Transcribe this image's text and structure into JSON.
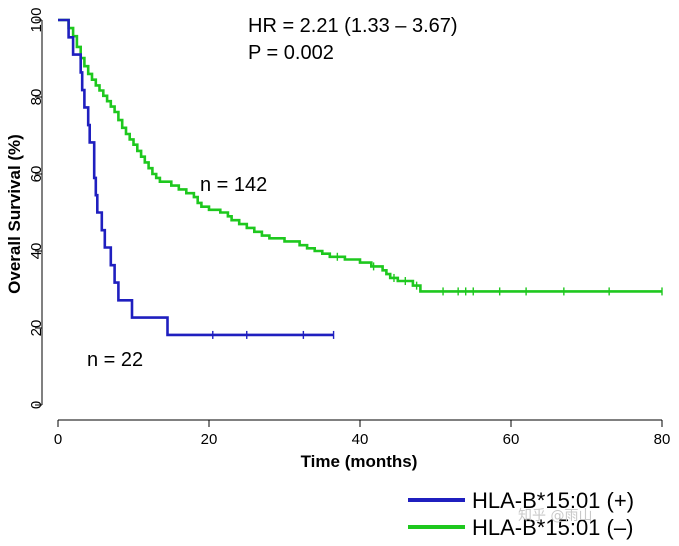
{
  "chart_data": {
    "type": "line",
    "subtype": "kaplan-meier",
    "xlabel": "Time (months)",
    "ylabel": "Overall Survival (%)",
    "xlim": [
      0,
      80
    ],
    "ylim": [
      0,
      100
    ],
    "xticks": [
      0,
      20,
      40,
      60,
      80
    ],
    "yticks": [
      0,
      20,
      40,
      60,
      80,
      100
    ],
    "annotations": {
      "hr": "HR = 2.21 (1.33 – 3.67)",
      "p": "P = 0.002",
      "n_minus": "n = 142",
      "n_plus": "n = 22"
    },
    "series": [
      {
        "name": "HLA-B*15:01 (+)",
        "color": "#1f1fbf",
        "steps": [
          [
            0,
            100
          ],
          [
            1.4,
            100
          ],
          [
            1.4,
            95.5
          ],
          [
            2,
            95.5
          ],
          [
            2,
            91
          ],
          [
            3,
            91
          ],
          [
            3,
            86.4
          ],
          [
            3.2,
            86.4
          ],
          [
            3.2,
            81.8
          ],
          [
            3.5,
            81.8
          ],
          [
            3.5,
            77.3
          ],
          [
            4,
            77.3
          ],
          [
            4,
            72.7
          ],
          [
            4.2,
            72.7
          ],
          [
            4.2,
            68.2
          ],
          [
            4.8,
            68.2
          ],
          [
            4.8,
            59
          ],
          [
            5,
            59
          ],
          [
            5,
            54.5
          ],
          [
            5.2,
            54.5
          ],
          [
            5.2,
            50
          ],
          [
            5.8,
            50
          ],
          [
            5.8,
            45.4
          ],
          [
            6.2,
            45.4
          ],
          [
            6.2,
            40.9
          ],
          [
            7,
            40.9
          ],
          [
            7,
            36.3
          ],
          [
            7.5,
            36.3
          ],
          [
            7.5,
            31.8
          ],
          [
            8,
            31.8
          ],
          [
            8,
            27.2
          ],
          [
            9.8,
            27.2
          ],
          [
            9.8,
            22.7
          ],
          [
            14.5,
            22.7
          ],
          [
            14.5,
            18.2
          ],
          [
            36.5,
            18.2
          ]
        ],
        "censors": [
          [
            20.5,
            18.2
          ],
          [
            25,
            18.2
          ],
          [
            32.5,
            18.2
          ],
          [
            36.5,
            18.2
          ]
        ]
      },
      {
        "name": "HLA-B*15:01 (–)",
        "color": "#1ec81e",
        "steps": [
          [
            0,
            100
          ],
          [
            1.4,
            100
          ],
          [
            1.4,
            97.9
          ],
          [
            2,
            97.9
          ],
          [
            2,
            95.8
          ],
          [
            2.5,
            95.8
          ],
          [
            2.5,
            93
          ],
          [
            3,
            93
          ],
          [
            3,
            90.1
          ],
          [
            3.5,
            90.1
          ],
          [
            3.5,
            88
          ],
          [
            4,
            88
          ],
          [
            4,
            86
          ],
          [
            4.5,
            86
          ],
          [
            4.5,
            84.5
          ],
          [
            5,
            84.5
          ],
          [
            5,
            83
          ],
          [
            5.5,
            83
          ],
          [
            5.5,
            81.7
          ],
          [
            6,
            81.7
          ],
          [
            6,
            80.3
          ],
          [
            6.5,
            80.3
          ],
          [
            6.5,
            78.9
          ],
          [
            7,
            78.9
          ],
          [
            7,
            77.5
          ],
          [
            7.5,
            77.5
          ],
          [
            7.5,
            76.1
          ],
          [
            8,
            76.1
          ],
          [
            8,
            74
          ],
          [
            8.5,
            74
          ],
          [
            8.5,
            72
          ],
          [
            9,
            72
          ],
          [
            9,
            70.4
          ],
          [
            9.5,
            70.4
          ],
          [
            9.5,
            69
          ],
          [
            10,
            69
          ],
          [
            10,
            67.6
          ],
          [
            10.5,
            67.6
          ],
          [
            10.5,
            66
          ],
          [
            11,
            66
          ],
          [
            11,
            64.5
          ],
          [
            11.5,
            64.5
          ],
          [
            11.5,
            63
          ],
          [
            12,
            63
          ],
          [
            12,
            61.5
          ],
          [
            12.5,
            61.5
          ],
          [
            12.5,
            60
          ],
          [
            13,
            60
          ],
          [
            13,
            59
          ],
          [
            13.5,
            59
          ],
          [
            13.5,
            58
          ],
          [
            15,
            58
          ],
          [
            15,
            57
          ],
          [
            16,
            57
          ],
          [
            16,
            56
          ],
          [
            17,
            56
          ],
          [
            17,
            55
          ],
          [
            18,
            55
          ],
          [
            18,
            54
          ],
          [
            18.5,
            54
          ],
          [
            18.5,
            52.5
          ],
          [
            19,
            52.5
          ],
          [
            19,
            51.5
          ],
          [
            20,
            51.5
          ],
          [
            20,
            50.7
          ],
          [
            21.5,
            50.7
          ],
          [
            21.5,
            50
          ],
          [
            22.5,
            50
          ],
          [
            22.5,
            49
          ],
          [
            23,
            49
          ],
          [
            23,
            48
          ],
          [
            24,
            48
          ],
          [
            24,
            47
          ],
          [
            25,
            47
          ],
          [
            25,
            46
          ],
          [
            26,
            46
          ],
          [
            26,
            45
          ],
          [
            27,
            45
          ],
          [
            27,
            44
          ],
          [
            28,
            44
          ],
          [
            28,
            43.3
          ],
          [
            30,
            43.3
          ],
          [
            30,
            42.5
          ],
          [
            32,
            42.5
          ],
          [
            32,
            41.5
          ],
          [
            33,
            41.5
          ],
          [
            33,
            40.7
          ],
          [
            34,
            40.7
          ],
          [
            34,
            40
          ],
          [
            35,
            40
          ],
          [
            35,
            39.3
          ],
          [
            36,
            39.3
          ],
          [
            36,
            38.5
          ],
          [
            38,
            38.5
          ],
          [
            38,
            37.8
          ],
          [
            40,
            37.8
          ],
          [
            40,
            37
          ],
          [
            41.5,
            37
          ],
          [
            41.5,
            36
          ],
          [
            43,
            36
          ],
          [
            43,
            35
          ],
          [
            43.5,
            35
          ],
          [
            43.5,
            34
          ],
          [
            44,
            34
          ],
          [
            44,
            33
          ],
          [
            45,
            33
          ],
          [
            45,
            32.2
          ],
          [
            47,
            32.2
          ],
          [
            47,
            31
          ],
          [
            48,
            31
          ],
          [
            48,
            29.5
          ],
          [
            80,
            29.5
          ]
        ],
        "censors": [
          [
            37,
            38.5
          ],
          [
            41.8,
            36
          ],
          [
            44.5,
            33
          ],
          [
            46,
            32.2
          ],
          [
            47.5,
            31
          ],
          [
            51,
            29.5
          ],
          [
            53,
            29.5
          ],
          [
            54,
            29.5
          ],
          [
            55,
            29.5
          ],
          [
            58.5,
            29.5
          ],
          [
            62,
            29.5
          ],
          [
            67,
            29.5
          ],
          [
            73,
            29.5
          ],
          [
            80,
            29.5
          ]
        ]
      }
    ]
  }
}
